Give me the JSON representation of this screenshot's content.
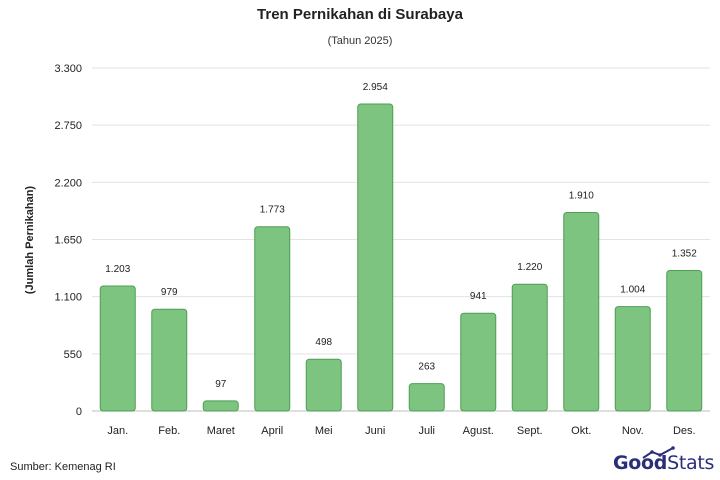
{
  "chart_data": {
    "type": "bar",
    "title": "Tren Pernikahan di Surabaya",
    "subtitle": "(Tahun 2025)",
    "ylabel": "(Jumlah Pernikahan)",
    "xlabel": "",
    "categories": [
      "Jan.",
      "Feb.",
      "Maret",
      "April",
      "Mei",
      "Juni",
      "Juli",
      "Agust.",
      "Sept.",
      "Okt.",
      "Nov.",
      "Des."
    ],
    "values": [
      1203,
      979,
      97,
      1773,
      498,
      2954,
      263,
      941,
      1220,
      1910,
      1004,
      1352
    ],
    "value_labels": [
      "1.203",
      "979",
      "97",
      "1.773",
      "498",
      "2.954",
      "263",
      "941",
      "1.220",
      "1.910",
      "1.004",
      "1.352"
    ],
    "ylim": [
      0,
      3300
    ],
    "yticks": [
      0,
      550,
      1100,
      1650,
      2200,
      2750,
      3300
    ],
    "ytick_labels": [
      "0",
      "550",
      "1.100",
      "1.650",
      "2.200",
      "2.750",
      "3.300"
    ],
    "grid": true,
    "bar_color": "#7cc47f",
    "bar_edge_color": "#4f9e54"
  },
  "footer": {
    "source": "Sumber: Kemenag RI",
    "logo_good": "Good",
    "logo_stats": "Stats"
  },
  "colors": {
    "logo": "#2b2f7a",
    "grid": "#e3e3e3"
  }
}
